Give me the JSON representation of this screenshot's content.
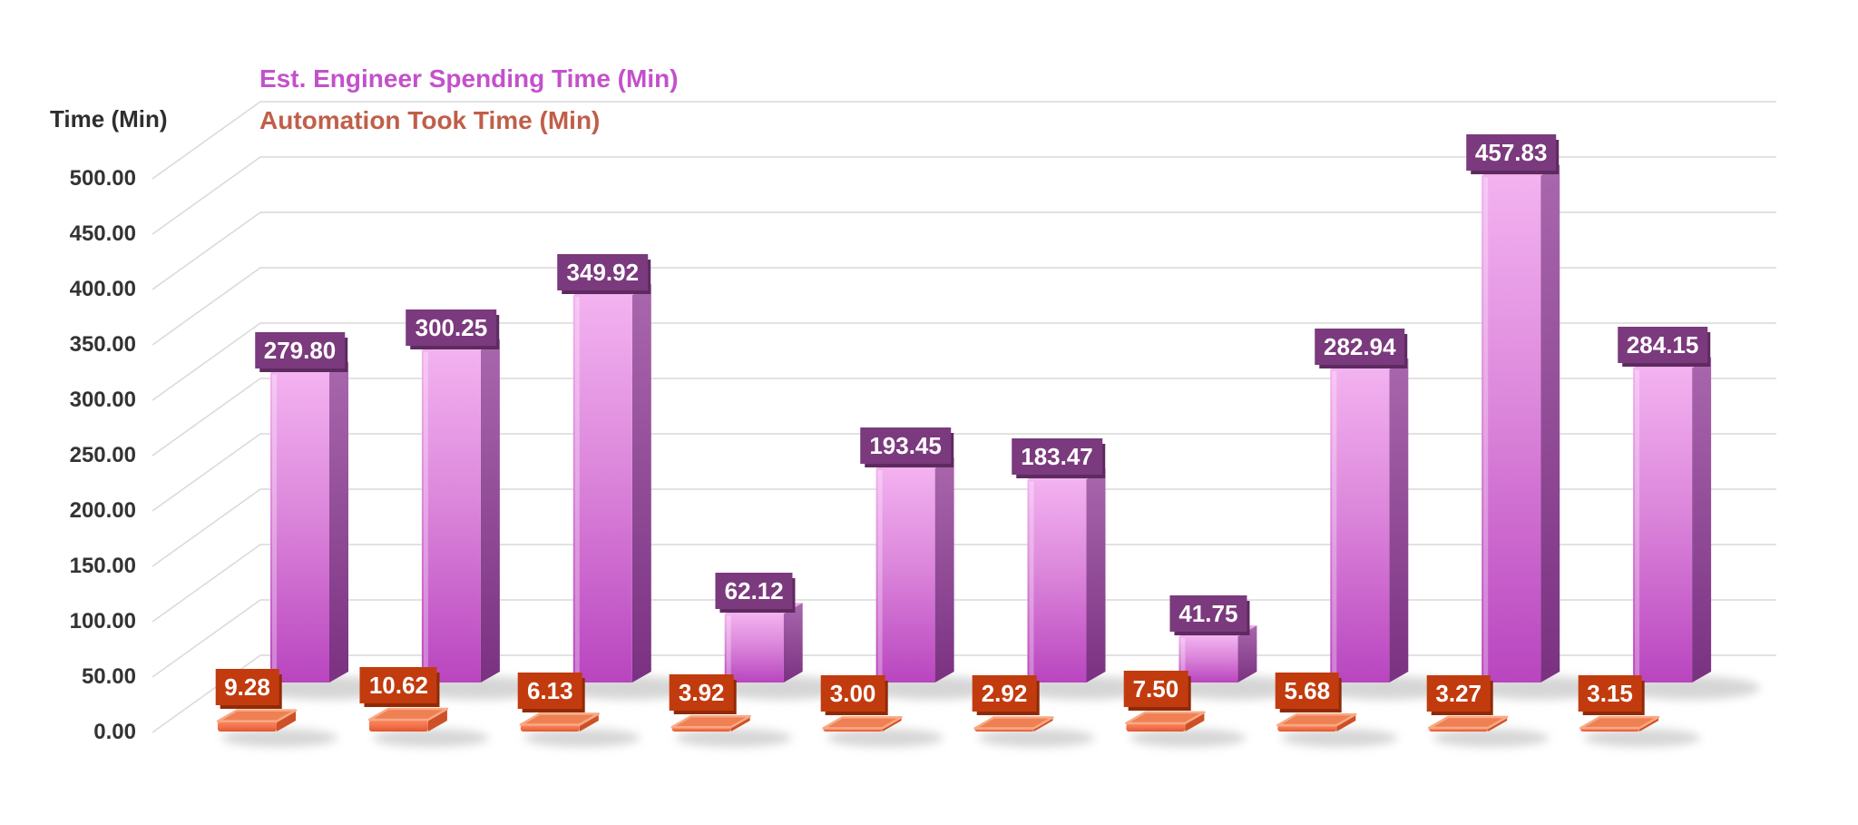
{
  "chart": {
    "axis_title": "Time (Min)",
    "legend": [
      {
        "label": "Est. Engineer Spending Time (Min)",
        "color": "#C351CB"
      },
      {
        "label": "Automation Took Time (Min)",
        "color": "#C05F49"
      }
    ]
  },
  "chart_data": {
    "type": "bar",
    "subtype": "3d-column",
    "title": "",
    "xlabel": "",
    "ylabel": "Time (Min)",
    "ylim": [
      0,
      500
    ],
    "ytick_step": 50,
    "ytick_decimals": 2,
    "grid": true,
    "legend_position": "top-left",
    "value_labels_visible": true,
    "series": [
      {
        "name": "Est. Engineer Spending Time (Min)",
        "color": "#C351CB",
        "label_box_color": "#7B3A7D",
        "values": [
          279.8,
          300.25,
          349.92,
          62.12,
          193.45,
          183.47,
          41.75,
          282.94,
          457.83,
          284.15
        ]
      },
      {
        "name": "Automation Took Time (Min)",
        "color": "#C05F49",
        "label_box_color": "#C23B0E",
        "values": [
          9.28,
          10.62,
          6.13,
          3.92,
          3.0,
          2.92,
          7.5,
          5.68,
          3.27,
          3.15
        ]
      }
    ]
  }
}
